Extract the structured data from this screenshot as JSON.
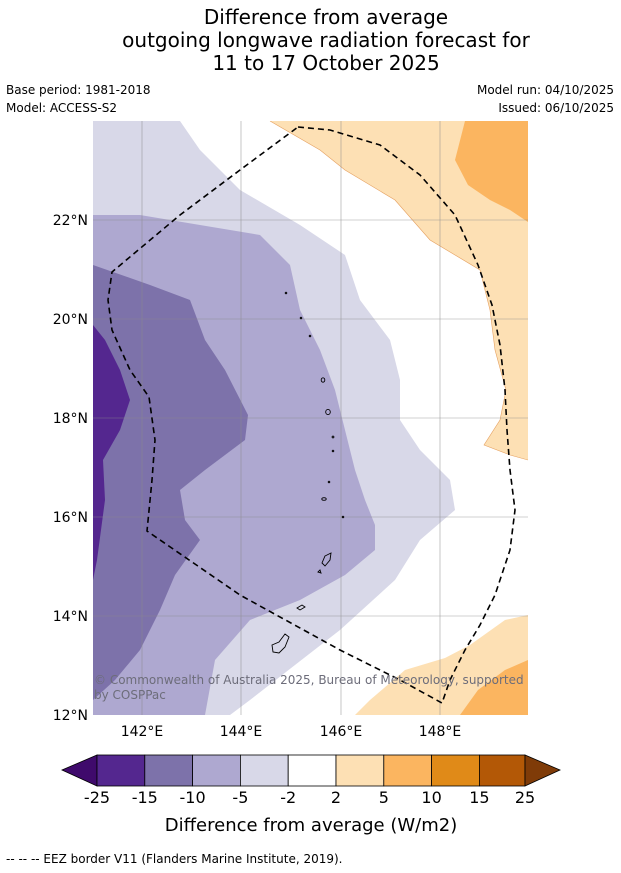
{
  "title": {
    "line1": "Difference from average",
    "line2": "outgoing longwave radiation forecast for",
    "line3": "11 to 17 October 2025"
  },
  "meta": {
    "base_period": "Base period: 1981-2018",
    "model": "Model: ACCESS-S2",
    "model_run": "Model run: 04/10/2025",
    "issued": "Issued: 06/10/2025"
  },
  "axes": {
    "lat_labels": [
      "22°N",
      "20°N",
      "18°N",
      "16°N",
      "14°N",
      "12°N"
    ],
    "lon_labels": [
      "142°E",
      "144°E",
      "146°E",
      "148°E"
    ]
  },
  "copyright": {
    "line1": "© Commonwealth of Australia 2025, Bureau of Meteorology, supported",
    "line2": "by COSPPac"
  },
  "colorbar": {
    "ticks": [
      "-25",
      "-15",
      "-10",
      "-5",
      "-2",
      "2",
      "5",
      "10",
      "15",
      "25"
    ],
    "colors": [
      "#3f0a6c",
      "#54278f",
      "#7d72aa",
      "#aea8d0",
      "#d8d8e8",
      "#ffffff",
      "#fde0b4",
      "#fbb560",
      "#e08a18",
      "#b35806",
      "#7f3b08"
    ],
    "label": "Difference from average (W/m2)"
  },
  "footer": {
    "legend": "--  --  -- EEZ border V11 (Flanders Marine Institute, 2019)."
  }
}
